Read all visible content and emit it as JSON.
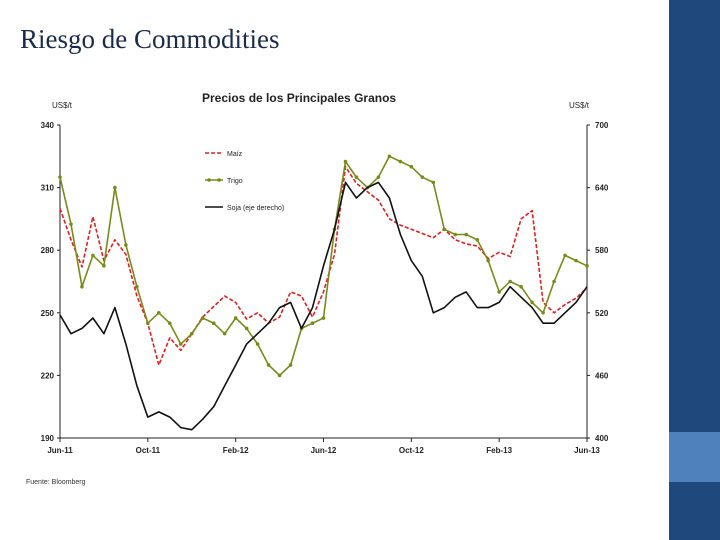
{
  "slide": {
    "title": "Riesgo de Commodities"
  },
  "theme": {
    "sidebar_dark": "#1f497d",
    "sidebar_light": "#4f81bd"
  },
  "chart_data": {
    "type": "line",
    "title": "Precios de los Principales Granos",
    "left_unit": "US$/t",
    "right_unit": "US$/t",
    "source": "Fuente: Bloomberg",
    "left_axis": {
      "ylim": [
        190,
        340
      ],
      "ticks": [
        "340",
        "310",
        "280",
        "250",
        "220",
        "190"
      ]
    },
    "right_axis": {
      "ylim": [
        400,
        700
      ],
      "ticks": [
        "700",
        "640",
        "580",
        "520",
        "460",
        "400"
      ]
    },
    "x_ticks": [
      "Jun-11",
      "Oct-11",
      "Feb-12",
      "Jun-12",
      "Oct-12",
      "Feb-13",
      "Jun-13"
    ],
    "x_domain": [
      0,
      24
    ],
    "series": [
      {
        "name": "Maíz",
        "axis": "left",
        "color": "#e02020",
        "style": "dashed",
        "x": [
          0,
          0.5,
          1,
          1.5,
          2,
          2.5,
          3,
          3.5,
          4,
          4.5,
          5,
          5.5,
          6,
          6.5,
          7,
          7.5,
          8,
          8.5,
          9,
          9.5,
          10,
          10.5,
          11,
          11.5,
          12,
          12.5,
          13,
          13.5,
          14,
          14.5,
          15,
          15.5,
          16,
          16.5,
          17,
          17.5,
          18,
          18.5,
          19,
          19.5,
          20,
          20.5,
          21,
          21.5,
          22,
          22.5,
          23,
          23.5,
          24
        ],
        "values": [
          300,
          285,
          272,
          296,
          275,
          285,
          278,
          258,
          245,
          225,
          238,
          232,
          240,
          248,
          253,
          258,
          255,
          247,
          250,
          245,
          248,
          260,
          258,
          248,
          260,
          278,
          320,
          312,
          308,
          304,
          295,
          292,
          290,
          288,
          286,
          290,
          285,
          283,
          282,
          276,
          279,
          277,
          295,
          299,
          255,
          250,
          254,
          257,
          262
        ]
      },
      {
        "name": "Trigo",
        "axis": "right",
        "color": "#7a8a1a",
        "style": "solid-markers",
        "x": [
          0,
          0.5,
          1,
          1.5,
          2,
          2.5,
          3,
          3.5,
          4,
          4.5,
          5,
          5.5,
          6,
          6.5,
          7,
          7.5,
          8,
          8.5,
          9,
          9.5,
          10,
          10.5,
          11,
          11.5,
          12,
          12.5,
          13,
          13.5,
          14,
          14.5,
          15,
          15.5,
          16,
          16.5,
          17,
          17.5,
          18,
          18.5,
          19,
          19.5,
          20,
          20.5,
          21,
          21.5,
          22,
          22.5,
          23,
          23.5,
          24
        ],
        "values": [
          650,
          605,
          545,
          575,
          565,
          640,
          585,
          545,
          510,
          520,
          510,
          490,
          500,
          515,
          510,
          500,
          515,
          505,
          490,
          470,
          460,
          470,
          505,
          510,
          515,
          600,
          665,
          650,
          640,
          650,
          670,
          665,
          660,
          650,
          645,
          600,
          595,
          595,
          590,
          570,
          540,
          550,
          545,
          530,
          520,
          550,
          575,
          570,
          565
        ]
      },
      {
        "name": "Soja (eje derecho)",
        "axis": "right",
        "color": "#111111",
        "style": "solid",
        "x": [
          0,
          0.5,
          1,
          1.5,
          2,
          2.5,
          3,
          3.5,
          4,
          4.5,
          5,
          5.5,
          6,
          6.5,
          7,
          7.5,
          8,
          8.5,
          9,
          9.5,
          10,
          10.5,
          11,
          11.5,
          12,
          12.5,
          13,
          13.5,
          14,
          14.5,
          15,
          15.5,
          16,
          16.5,
          17,
          17.5,
          18,
          18.5,
          19,
          19.5,
          20,
          20.5,
          21,
          21.5,
          22,
          22.5,
          23,
          23.5,
          24
        ],
        "values": [
          518,
          500,
          505,
          515,
          500,
          525,
          490,
          450,
          420,
          425,
          420,
          410,
          408,
          418,
          430,
          450,
          470,
          490,
          500,
          510,
          525,
          530,
          505,
          525,
          565,
          600,
          645,
          630,
          640,
          645,
          630,
          595,
          570,
          555,
          520,
          525,
          535,
          540,
          525,
          525,
          530,
          545,
          535,
          525,
          510,
          510,
          520,
          530,
          545
        ]
      }
    ]
  }
}
